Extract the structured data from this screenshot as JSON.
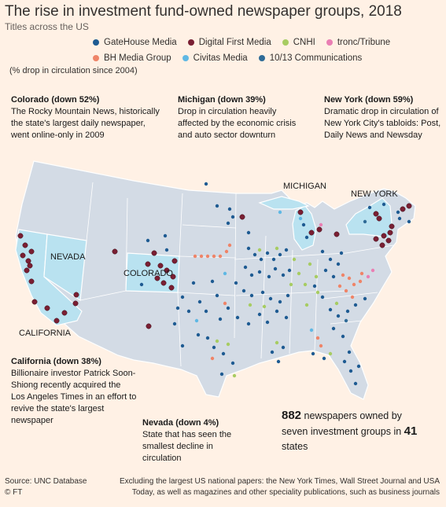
{
  "title": "The rise in investment fund-owned newspaper groups, 2018",
  "subtitle": "Titles across the US",
  "legend": {
    "row1": [
      {
        "label": "GateHouse Media",
        "color": "#1e5b92"
      },
      {
        "label": "Digital First Media",
        "color": "#7a1f33"
      },
      {
        "label": "CNHI",
        "color": "#a7cc62"
      },
      {
        "label": "tronc/Tribune",
        "color": "#ea7fb4"
      }
    ],
    "row2": [
      {
        "label": "BH Media Group",
        "color": "#ef8468"
      },
      {
        "label": "Civitas Media",
        "color": "#5fb8e4"
      },
      {
        "label": "10/13 Communications",
        "color": "#2f6b97"
      }
    ]
  },
  "measure_note": "(% drop in circulation since 2004)",
  "highlight_color": "#b9e2f0",
  "map_states": {
    "california": "CALIFORNIA",
    "nevada": "NEVADA",
    "colorado": "COLORADO",
    "michigan": "MICHIGAN",
    "new_york": "NEW YORK"
  },
  "annotations": {
    "colorado": {
      "head": "Colorado (down 52%)",
      "body": "The Rocky Mountain News, historically the state's largest daily newspaper, went online-only in 2009"
    },
    "michigan": {
      "head": "Michigan (down 39%)",
      "body": "Drop in circulation heavily affected by the economic crisis and auto sector downturn"
    },
    "new_york": {
      "head": "New York (down 59%)",
      "body": "Dramatic drop in circulation of New York City's tabloids: Post, Daily News and Newsday"
    },
    "california": {
      "head": "California (down 38%)",
      "body": "Billionaire investor Patrick Soon-Shiong recently acquired the Los Angeles Times in an effort to revive the state's largest newspaper"
    },
    "nevada": {
      "head": "Nevada (down 4%)",
      "body": "State that has seen the smallest decline in circulation"
    }
  },
  "totals": {
    "newspapers": "882",
    "line1": "newspapers owned by",
    "line2_a": "seven investment groups in",
    "states": "41",
    "line2_b": "states"
  },
  "source": "Source: UNC Database",
  "credit": "© FT",
  "footnote": {
    "line1": "Excluding the largest US national papers: the New York Times, Wall Street Journal and USA",
    "line2": "Today, as well as magazines and other speciality publications, such as business journals"
  }
}
